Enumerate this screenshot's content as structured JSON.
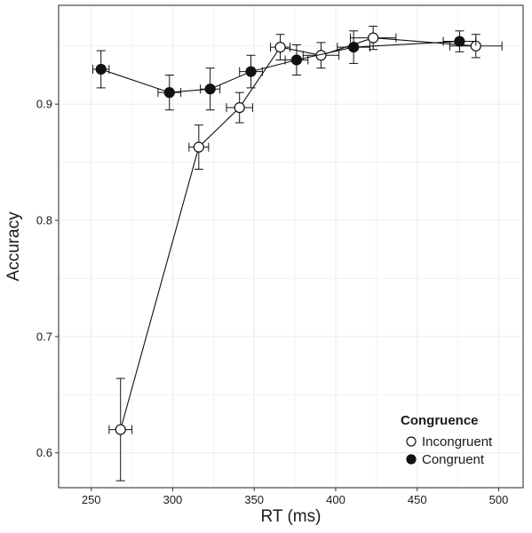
{
  "chart_data": {
    "type": "line",
    "title": "",
    "xlabel": "RT (ms)",
    "ylabel": "Accuracy",
    "xlim": [
      230,
      515
    ],
    "ylim": [
      0.57,
      0.985
    ],
    "x_ticks": [
      250,
      300,
      350,
      400,
      450,
      500
    ],
    "y_ticks": [
      0.6,
      0.7,
      0.8,
      0.9
    ],
    "y_tick_labels": [
      "0.6",
      "0.7",
      "0.8",
      "0.9"
    ],
    "grid": true,
    "legend": {
      "title": "Congruence",
      "position": "bottom-right",
      "entries": [
        "Incongruent",
        "Congruent"
      ]
    },
    "series": [
      {
        "name": "Incongruent",
        "marker": "open-circle",
        "points": [
          {
            "x": 268,
            "y": 0.62,
            "xerr": 7,
            "yerr": 0.044
          },
          {
            "x": 316,
            "y": 0.863,
            "xerr": 6,
            "yerr": 0.019
          },
          {
            "x": 341,
            "y": 0.897,
            "xerr": 8,
            "yerr": 0.013
          },
          {
            "x": 366,
            "y": 0.949,
            "xerr": 6,
            "yerr": 0.011
          },
          {
            "x": 391,
            "y": 0.942,
            "xerr": 11,
            "yerr": 0.011
          },
          {
            "x": 423,
            "y": 0.957,
            "xerr": 14,
            "yerr": 0.01
          },
          {
            "x": 486,
            "y": 0.95,
            "xerr": 16,
            "yerr": 0.01
          }
        ]
      },
      {
        "name": "Congruent",
        "marker": "filled-circle",
        "points": [
          {
            "x": 256,
            "y": 0.93,
            "xerr": 5,
            "yerr": 0.016
          },
          {
            "x": 298,
            "y": 0.91,
            "xerr": 7,
            "yerr": 0.015
          },
          {
            "x": 323,
            "y": 0.913,
            "xerr": 6,
            "yerr": 0.018
          },
          {
            "x": 348,
            "y": 0.928,
            "xerr": 7,
            "yerr": 0.014
          },
          {
            "x": 376,
            "y": 0.938,
            "xerr": 7,
            "yerr": 0.013
          },
          {
            "x": 411,
            "y": 0.949,
            "xerr": 10,
            "yerr": 0.014
          },
          {
            "x": 476,
            "y": 0.954,
            "xerr": 10,
            "yerr": 0.009
          }
        ]
      }
    ]
  }
}
